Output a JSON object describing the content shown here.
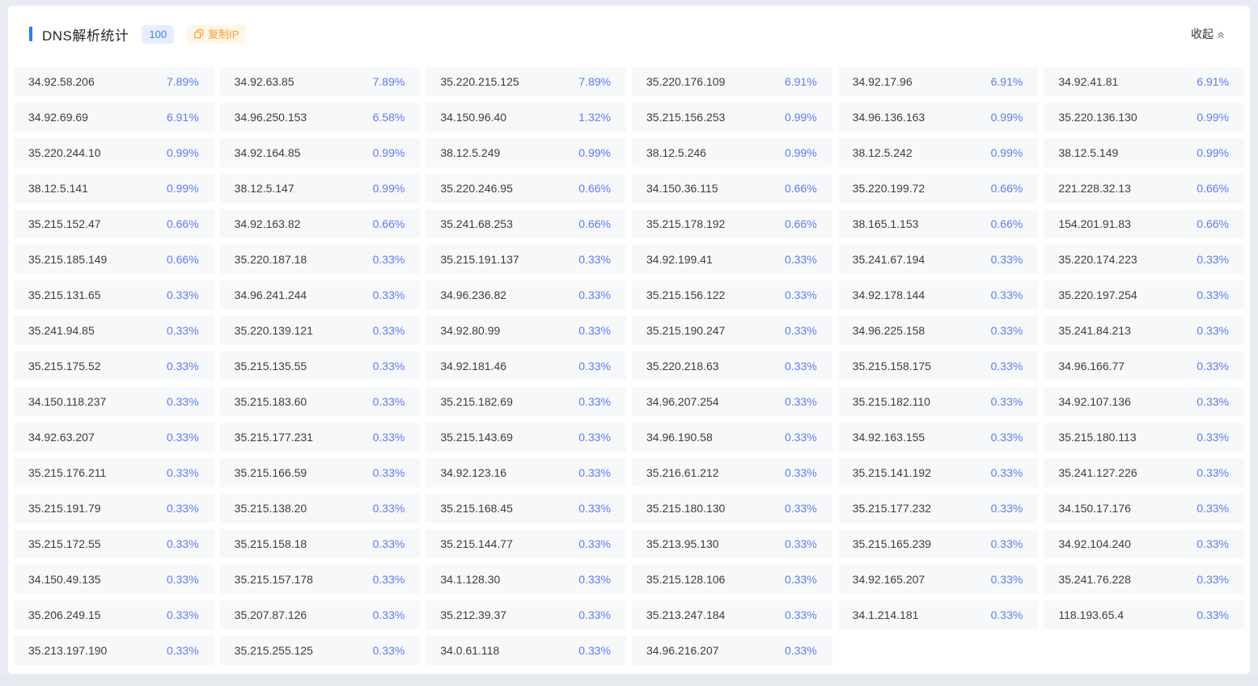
{
  "header": {
    "title": "DNS解析统计",
    "count_badge": "100",
    "copy_button_label": "复制IP",
    "collapse_label": "收起",
    "icons": {
      "copy_icon": "copy-icon",
      "collapse_icon": "double-chevron-up-icon"
    }
  },
  "colors": {
    "accent_blue": "#2e7bff",
    "percent_blue": "#5e7bf5",
    "badge_bg": "#e4eefe",
    "badge_text": "#4c7ef9",
    "copy_bg": "#fff6e9",
    "copy_text": "#ff9a2e",
    "cell_bg": "#f7f8fa"
  },
  "grid": {
    "columns": 6,
    "entries": [
      {
        "ip": "34.92.58.206",
        "pct": "7.89%"
      },
      {
        "ip": "34.92.63.85",
        "pct": "7.89%"
      },
      {
        "ip": "35.220.215.125",
        "pct": "7.89%"
      },
      {
        "ip": "35.220.176.109",
        "pct": "6.91%"
      },
      {
        "ip": "34.92.17.96",
        "pct": "6.91%"
      },
      {
        "ip": "34.92.41.81",
        "pct": "6.91%"
      },
      {
        "ip": "34.92.69.69",
        "pct": "6.91%"
      },
      {
        "ip": "34.96.250.153",
        "pct": "6.58%"
      },
      {
        "ip": "34.150.96.40",
        "pct": "1.32%"
      },
      {
        "ip": "35.215.156.253",
        "pct": "0.99%"
      },
      {
        "ip": "34.96.136.163",
        "pct": "0.99%"
      },
      {
        "ip": "35.220.136.130",
        "pct": "0.99%"
      },
      {
        "ip": "35.220.244.10",
        "pct": "0.99%"
      },
      {
        "ip": "34.92.164.85",
        "pct": "0.99%"
      },
      {
        "ip": "38.12.5.249",
        "pct": "0.99%"
      },
      {
        "ip": "38.12.5.246",
        "pct": "0.99%"
      },
      {
        "ip": "38.12.5.242",
        "pct": "0.99%"
      },
      {
        "ip": "38.12.5.149",
        "pct": "0.99%"
      },
      {
        "ip": "38.12.5.141",
        "pct": "0.99%"
      },
      {
        "ip": "38.12.5.147",
        "pct": "0.99%"
      },
      {
        "ip": "35.220.246.95",
        "pct": "0.66%"
      },
      {
        "ip": "34.150.36.115",
        "pct": "0.66%"
      },
      {
        "ip": "35.220.199.72",
        "pct": "0.66%"
      },
      {
        "ip": "221.228.32.13",
        "pct": "0.66%"
      },
      {
        "ip": "35.215.152.47",
        "pct": "0.66%"
      },
      {
        "ip": "34.92.163.82",
        "pct": "0.66%"
      },
      {
        "ip": "35.241.68.253",
        "pct": "0.66%"
      },
      {
        "ip": "35.215.178.192",
        "pct": "0.66%"
      },
      {
        "ip": "38.165.1.153",
        "pct": "0.66%"
      },
      {
        "ip": "154.201.91.83",
        "pct": "0.66%"
      },
      {
        "ip": "35.215.185.149",
        "pct": "0.66%"
      },
      {
        "ip": "35.220.187.18",
        "pct": "0.33%"
      },
      {
        "ip": "35.215.191.137",
        "pct": "0.33%"
      },
      {
        "ip": "34.92.199.41",
        "pct": "0.33%"
      },
      {
        "ip": "35.241.67.194",
        "pct": "0.33%"
      },
      {
        "ip": "35.220.174.223",
        "pct": "0.33%"
      },
      {
        "ip": "35.215.131.65",
        "pct": "0.33%"
      },
      {
        "ip": "34.96.241.244",
        "pct": "0.33%"
      },
      {
        "ip": "34.96.236.82",
        "pct": "0.33%"
      },
      {
        "ip": "35.215.156.122",
        "pct": "0.33%"
      },
      {
        "ip": "34.92.178.144",
        "pct": "0.33%"
      },
      {
        "ip": "35.220.197.254",
        "pct": "0.33%"
      },
      {
        "ip": "35.241.94.85",
        "pct": "0.33%"
      },
      {
        "ip": "35.220.139.121",
        "pct": "0.33%"
      },
      {
        "ip": "34.92.80.99",
        "pct": "0.33%"
      },
      {
        "ip": "35.215.190.247",
        "pct": "0.33%"
      },
      {
        "ip": "34.96.225.158",
        "pct": "0.33%"
      },
      {
        "ip": "35.241.84.213",
        "pct": "0.33%"
      },
      {
        "ip": "35.215.175.52",
        "pct": "0.33%"
      },
      {
        "ip": "35.215.135.55",
        "pct": "0.33%"
      },
      {
        "ip": "34.92.181.46",
        "pct": "0.33%"
      },
      {
        "ip": "35.220.218.63",
        "pct": "0.33%"
      },
      {
        "ip": "35.215.158.175",
        "pct": "0.33%"
      },
      {
        "ip": "34.96.166.77",
        "pct": "0.33%"
      },
      {
        "ip": "34.150.118.237",
        "pct": "0.33%"
      },
      {
        "ip": "35.215.183.60",
        "pct": "0.33%"
      },
      {
        "ip": "35.215.182.69",
        "pct": "0.33%"
      },
      {
        "ip": "34.96.207.254",
        "pct": "0.33%"
      },
      {
        "ip": "35.215.182.110",
        "pct": "0.33%"
      },
      {
        "ip": "34.92.107.136",
        "pct": "0.33%"
      },
      {
        "ip": "34.92.63.207",
        "pct": "0.33%"
      },
      {
        "ip": "35.215.177.231",
        "pct": "0.33%"
      },
      {
        "ip": "35.215.143.69",
        "pct": "0.33%"
      },
      {
        "ip": "34.96.190.58",
        "pct": "0.33%"
      },
      {
        "ip": "34.92.163.155",
        "pct": "0.33%"
      },
      {
        "ip": "35.215.180.113",
        "pct": "0.33%"
      },
      {
        "ip": "35.215.176.211",
        "pct": "0.33%"
      },
      {
        "ip": "35.215.166.59",
        "pct": "0.33%"
      },
      {
        "ip": "34.92.123.16",
        "pct": "0.33%"
      },
      {
        "ip": "35.216.61.212",
        "pct": "0.33%"
      },
      {
        "ip": "35.215.141.192",
        "pct": "0.33%"
      },
      {
        "ip": "35.241.127.226",
        "pct": "0.33%"
      },
      {
        "ip": "35.215.191.79",
        "pct": "0.33%"
      },
      {
        "ip": "35.215.138.20",
        "pct": "0.33%"
      },
      {
        "ip": "35.215.168.45",
        "pct": "0.33%"
      },
      {
        "ip": "35.215.180.130",
        "pct": "0.33%"
      },
      {
        "ip": "35.215.177.232",
        "pct": "0.33%"
      },
      {
        "ip": "34.150.17.176",
        "pct": "0.33%"
      },
      {
        "ip": "35.215.172.55",
        "pct": "0.33%"
      },
      {
        "ip": "35.215.158.18",
        "pct": "0.33%"
      },
      {
        "ip": "35.215.144.77",
        "pct": "0.33%"
      },
      {
        "ip": "35.213.95.130",
        "pct": "0.33%"
      },
      {
        "ip": "35.215.165.239",
        "pct": "0.33%"
      },
      {
        "ip": "34.92.104.240",
        "pct": "0.33%"
      },
      {
        "ip": "34.150.49.135",
        "pct": "0.33%"
      },
      {
        "ip": "35.215.157.178",
        "pct": "0.33%"
      },
      {
        "ip": "34.1.128.30",
        "pct": "0.33%"
      },
      {
        "ip": "35.215.128.106",
        "pct": "0.33%"
      },
      {
        "ip": "34.92.165.207",
        "pct": "0.33%"
      },
      {
        "ip": "35.241.76.228",
        "pct": "0.33%"
      },
      {
        "ip": "35.206.249.15",
        "pct": "0.33%"
      },
      {
        "ip": "35.207.87.126",
        "pct": "0.33%"
      },
      {
        "ip": "35.212.39.37",
        "pct": "0.33%"
      },
      {
        "ip": "35.213.247.184",
        "pct": "0.33%"
      },
      {
        "ip": "34.1.214.181",
        "pct": "0.33%"
      },
      {
        "ip": "118.193.65.4",
        "pct": "0.33%"
      },
      {
        "ip": "35.213.197.190",
        "pct": "0.33%"
      },
      {
        "ip": "35.215.255.125",
        "pct": "0.33%"
      },
      {
        "ip": "34.0.61.118",
        "pct": "0.33%"
      },
      {
        "ip": "34.96.216.207",
        "pct": "0.33%"
      }
    ]
  }
}
